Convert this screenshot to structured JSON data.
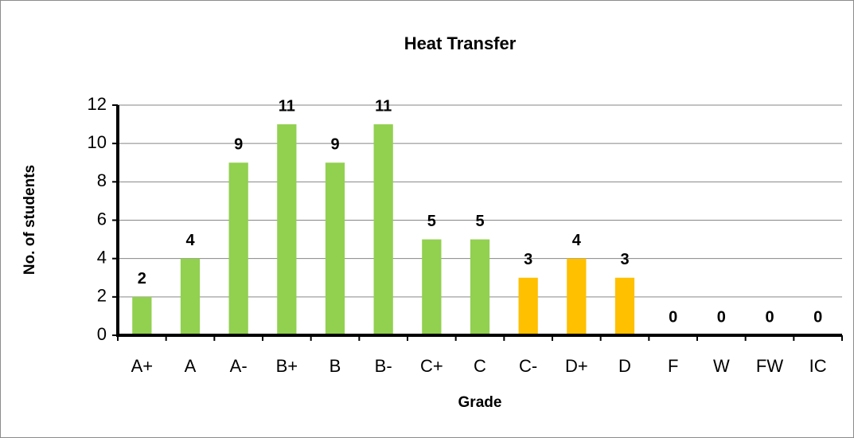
{
  "chart_data": {
    "type": "bar",
    "title": "Heat Transfer",
    "x_label": "Grade",
    "y_label": "No. of students",
    "categories": [
      "A+",
      "A",
      "A-",
      "B+",
      "B",
      "B-",
      "C+",
      "C",
      "C-",
      "D+",
      "D",
      "F",
      "W",
      "FW",
      "IC"
    ],
    "values": [
      2,
      4,
      9,
      11,
      9,
      11,
      5,
      5,
      3,
      4,
      3,
      0,
      0,
      0,
      0
    ],
    "colors": [
      "#92d050",
      "#92d050",
      "#92d050",
      "#92d050",
      "#92d050",
      "#92d050",
      "#92d050",
      "#92d050",
      "#ffc000",
      "#ffc000",
      "#ffc000",
      "#ffc000",
      "#ffc000",
      "#ffc000",
      "#ffc000"
    ],
    "ylim": [
      0,
      12
    ],
    "yticks": [
      0,
      2,
      4,
      6,
      8,
      10,
      12
    ],
    "grid": true
  }
}
